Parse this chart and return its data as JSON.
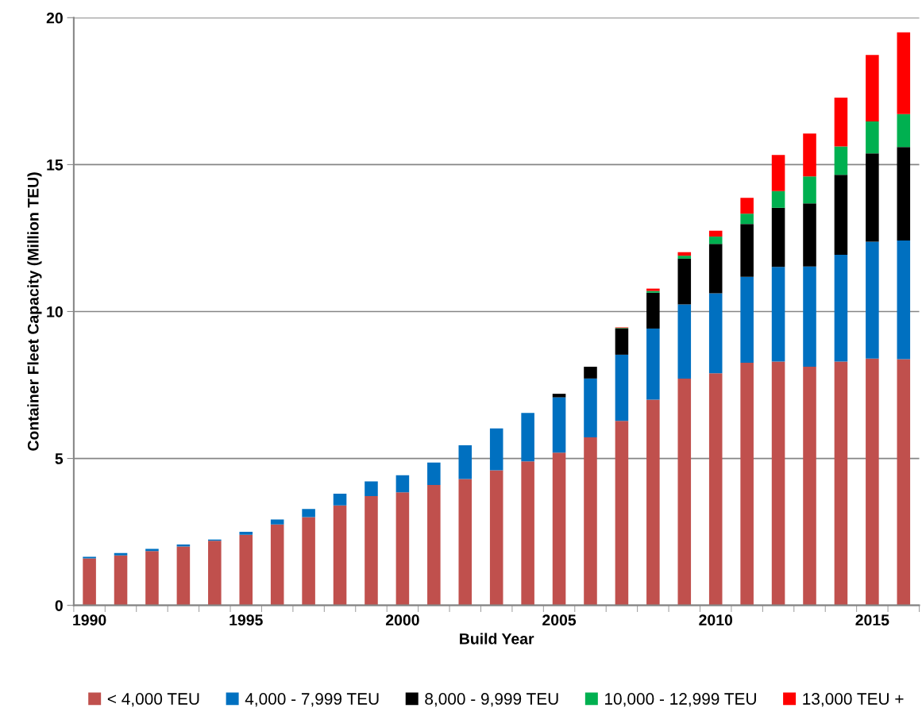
{
  "chart_data": {
    "type": "bar",
    "stacked": true,
    "xlabel": "Build Year",
    "ylabel": "Container Fleet Capacity (Million TEU)",
    "categories": [
      "1990",
      null,
      null,
      null,
      null,
      "1995",
      null,
      null,
      null,
      null,
      "2000",
      null,
      null,
      null,
      null,
      "2005",
      null,
      null,
      null,
      null,
      "2010",
      null,
      null,
      null,
      null,
      "2015",
      null
    ],
    "series": [
      {
        "name": "< 4,000 TEU",
        "color": "#c0504d",
        "values": [
          1.6,
          1.7,
          1.85,
          2.0,
          2.2,
          2.4,
          2.75,
          3.0,
          3.4,
          3.72,
          3.85,
          4.1,
          4.3,
          4.6,
          4.9,
          5.2,
          5.72,
          6.28,
          7.0,
          7.72,
          7.9,
          8.26,
          8.3,
          8.12,
          8.3,
          8.4,
          8.38
        ]
      },
      {
        "name": "4,000 - 7,999 TEU",
        "color": "#0070c0",
        "values": [
          0.05,
          0.08,
          0.07,
          0.07,
          0.04,
          0.1,
          0.17,
          0.28,
          0.4,
          0.5,
          0.58,
          0.76,
          1.15,
          1.42,
          1.65,
          1.88,
          2.0,
          2.25,
          2.42,
          2.52,
          2.72,
          2.92,
          3.22,
          3.41,
          3.63,
          3.98,
          4.04
        ]
      },
      {
        "name": "8,000 - 9,999 TEU",
        "color": "#000000",
        "values": [
          0,
          0,
          0,
          0,
          0,
          0,
          0,
          0,
          0,
          0,
          0,
          0,
          0,
          0,
          0,
          0.12,
          0.4,
          0.89,
          1.22,
          1.56,
          1.68,
          1.8,
          2.01,
          2.15,
          2.72,
          3.0,
          3.18
        ]
      },
      {
        "name": "10,000 - 12,999 TEU",
        "color": "#00b050",
        "values": [
          0,
          0,
          0,
          0,
          0,
          0,
          0,
          0,
          0,
          0,
          0,
          0,
          0,
          0,
          0,
          0,
          0,
          0.02,
          0.06,
          0.1,
          0.25,
          0.35,
          0.57,
          0.92,
          0.97,
          1.09,
          1.12
        ]
      },
      {
        "name": "13,000 TEU +",
        "color": "#ff0000",
        "values": [
          0,
          0,
          0,
          0,
          0,
          0,
          0,
          0,
          0,
          0,
          0,
          0,
          0,
          0,
          0,
          0,
          0,
          0.02,
          0.08,
          0.12,
          0.2,
          0.54,
          1.23,
          1.46,
          1.66,
          2.26,
          2.78
        ]
      }
    ],
    "ylim": [
      0,
      20
    ],
    "yticks": [
      0,
      5,
      10,
      15,
      20
    ],
    "grid": "y",
    "legend": "bottom"
  }
}
